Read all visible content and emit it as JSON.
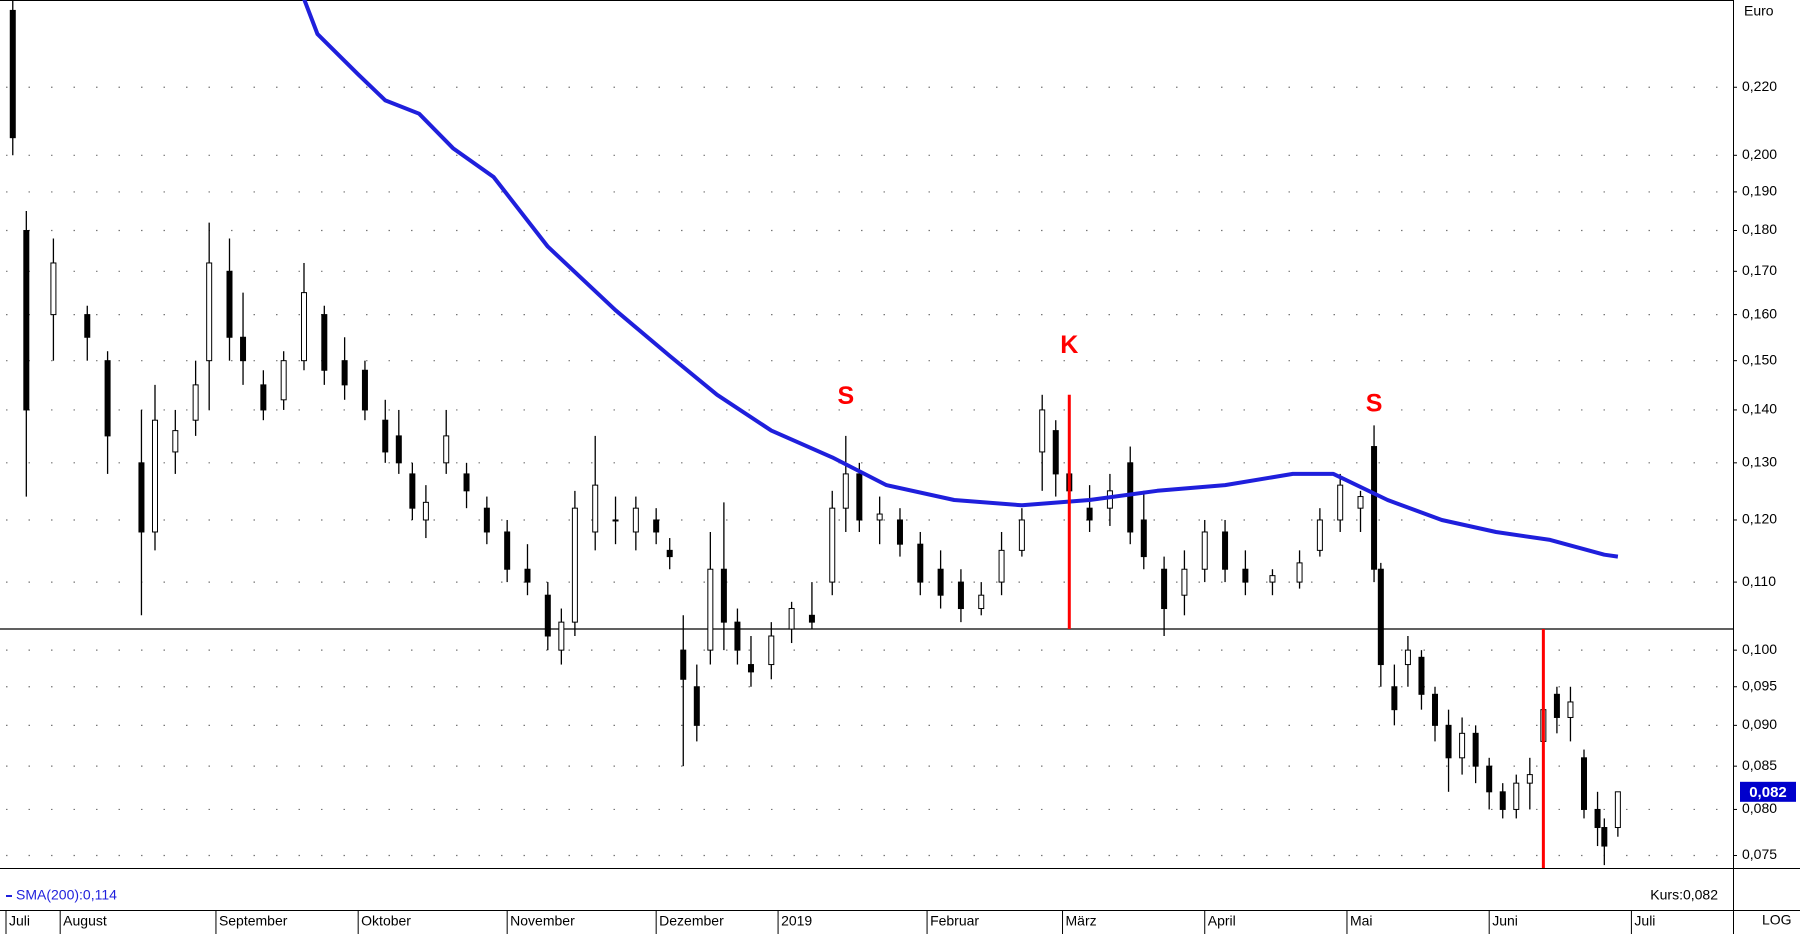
{
  "chart_data": {
    "type": "candlestick",
    "x": [
      1,
      3,
      7,
      12,
      15,
      20,
      22,
      25,
      28,
      30,
      33,
      35,
      38,
      41,
      44,
      47,
      50,
      53,
      56,
      58,
      60,
      62,
      65,
      68,
      71,
      74,
      77,
      80,
      82,
      84,
      87,
      90,
      93,
      96,
      98,
      100,
      102,
      104,
      106,
      108,
      110,
      113,
      116,
      119,
      122,
      124,
      126,
      129,
      132,
      135,
      138,
      141,
      144,
      147,
      150,
      153,
      155,
      157,
      160,
      163,
      166,
      168,
      171,
      174,
      177,
      180,
      183,
      187,
      191,
      194,
      197,
      200,
      202,
      203,
      205,
      207,
      209,
      211,
      213,
      215,
      217,
      219,
      221,
      223,
      225,
      227,
      229,
      231,
      233,
      235,
      236,
      238
    ],
    "open": [
      0.245,
      0.18,
      0.16,
      0.16,
      0.15,
      0.13,
      0.118,
      0.132,
      0.138,
      0.15,
      0.17,
      0.155,
      0.145,
      0.142,
      0.15,
      0.16,
      0.15,
      0.148,
      0.138,
      0.135,
      0.128,
      0.12,
      0.13,
      0.128,
      0.122,
      0.118,
      0.112,
      0.108,
      0.1,
      0.104,
      0.118,
      0.12,
      0.118,
      0.12,
      0.115,
      0.1,
      0.095,
      0.1,
      0.112,
      0.104,
      0.098,
      0.098,
      0.103,
      0.105,
      0.11,
      0.122,
      0.128,
      0.12,
      0.12,
      0.116,
      0.112,
      0.11,
      0.106,
      0.11,
      0.115,
      0.132,
      0.136,
      0.128,
      0.122,
      0.122,
      0.13,
      0.12,
      0.112,
      0.108,
      0.112,
      0.118,
      0.112,
      0.11,
      0.11,
      0.115,
      0.12,
      0.122,
      0.133,
      0.112,
      0.095,
      0.098,
      0.099,
      0.094,
      0.09,
      0.086,
      0.089,
      0.085,
      0.082,
      0.08,
      0.083,
      0.088,
      0.094,
      0.091,
      0.086,
      0.08,
      0.078,
      0.078
    ],
    "high": [
      0.25,
      0.185,
      0.178,
      0.162,
      0.152,
      0.14,
      0.145,
      0.14,
      0.15,
      0.182,
      0.178,
      0.165,
      0.148,
      0.152,
      0.172,
      0.162,
      0.155,
      0.15,
      0.142,
      0.14,
      0.13,
      0.126,
      0.14,
      0.13,
      0.124,
      0.12,
      0.116,
      0.11,
      0.106,
      0.125,
      0.135,
      0.124,
      0.124,
      0.122,
      0.117,
      0.105,
      0.098,
      0.118,
      0.123,
      0.106,
      0.102,
      0.104,
      0.107,
      0.11,
      0.125,
      0.135,
      0.13,
      0.124,
      0.122,
      0.118,
      0.115,
      0.112,
      0.11,
      0.118,
      0.122,
      0.143,
      0.138,
      0.13,
      0.126,
      0.128,
      0.133,
      0.125,
      0.114,
      0.115,
      0.12,
      0.12,
      0.115,
      0.112,
      0.115,
      0.122,
      0.128,
      0.125,
      0.137,
      0.113,
      0.098,
      0.102,
      0.1,
      0.095,
      0.092,
      0.091,
      0.09,
      0.086,
      0.083,
      0.084,
      0.086,
      0.099,
      0.095,
      0.095,
      0.087,
      0.082,
      0.079,
      0.082
    ],
    "low": [
      0.2,
      0.124,
      0.15,
      0.15,
      0.128,
      0.105,
      0.115,
      0.128,
      0.135,
      0.14,
      0.15,
      0.145,
      0.138,
      0.14,
      0.148,
      0.145,
      0.142,
      0.138,
      0.13,
      0.128,
      0.12,
      0.117,
      0.128,
      0.122,
      0.116,
      0.11,
      0.108,
      0.1,
      0.098,
      0.102,
      0.115,
      0.116,
      0.115,
      0.116,
      0.112,
      0.085,
      0.088,
      0.098,
      0.1,
      0.098,
      0.095,
      0.096,
      0.101,
      0.103,
      0.108,
      0.118,
      0.118,
      0.116,
      0.114,
      0.108,
      0.106,
      0.104,
      0.105,
      0.108,
      0.114,
      0.125,
      0.124,
      0.12,
      0.118,
      0.119,
      0.116,
      0.112,
      0.102,
      0.105,
      0.11,
      0.11,
      0.108,
      0.108,
      0.109,
      0.114,
      0.118,
      0.118,
      0.11,
      0.095,
      0.09,
      0.095,
      0.092,
      0.088,
      0.082,
      0.084,
      0.083,
      0.08,
      0.079,
      0.079,
      0.08,
      0.087,
      0.089,
      0.088,
      0.079,
      0.076,
      0.074,
      0.077
    ],
    "close": [
      0.205,
      0.14,
      0.172,
      0.155,
      0.135,
      0.118,
      0.138,
      0.136,
      0.145,
      0.172,
      0.155,
      0.15,
      0.14,
      0.15,
      0.165,
      0.148,
      0.145,
      0.14,
      0.132,
      0.13,
      0.122,
      0.123,
      0.135,
      0.125,
      0.118,
      0.112,
      0.11,
      0.102,
      0.104,
      0.122,
      0.126,
      0.12,
      0.122,
      0.118,
      0.114,
      0.096,
      0.09,
      0.112,
      0.104,
      0.1,
      0.097,
      0.102,
      0.106,
      0.104,
      0.122,
      0.128,
      0.12,
      0.121,
      0.116,
      0.11,
      0.108,
      0.106,
      0.108,
      0.115,
      0.12,
      0.14,
      0.128,
      0.125,
      0.12,
      0.125,
      0.118,
      0.114,
      0.106,
      0.112,
      0.118,
      0.112,
      0.11,
      0.111,
      0.113,
      0.12,
      0.126,
      0.124,
      0.112,
      0.098,
      0.092,
      0.1,
      0.094,
      0.09,
      0.086,
      0.089,
      0.085,
      0.082,
      0.08,
      0.083,
      0.084,
      0.092,
      0.091,
      0.093,
      0.08,
      0.078,
      0.076,
      0.082
    ],
    "up_color": "#ffffff",
    "down_color": "#000000",
    "sma": {
      "name": "SMA(200):0,114",
      "color": "#1f1fdc",
      "x": [
        44,
        46,
        52,
        56,
        61,
        66,
        72,
        80,
        90,
        98,
        105,
        113,
        122,
        130,
        140,
        150,
        160,
        170,
        180,
        190,
        196,
        204,
        212,
        220,
        228,
        236,
        238
      ],
      "values": [
        0.249,
        0.237,
        0.224,
        0.216,
        0.212,
        0.202,
        0.194,
        0.176,
        0.161,
        0.151,
        0.143,
        0.136,
        0.131,
        0.126,
        0.1234,
        0.1225,
        0.1234,
        0.125,
        0.126,
        0.128,
        0.128,
        0.1234,
        0.12,
        0.118,
        0.1167,
        0.1143,
        0.114
      ]
    },
    "xlim": [
      0,
      255
    ],
    "xticks": [
      {
        "value": 0,
        "label": "Juli"
      },
      {
        "value": 8,
        "label": "August"
      },
      {
        "value": 31,
        "label": "September"
      },
      {
        "value": 52,
        "label": "Oktober"
      },
      {
        "value": 74,
        "label": "November"
      },
      {
        "value": 96,
        "label": "Dezember"
      },
      {
        "value": 114,
        "label": "2019"
      },
      {
        "value": 136,
        "label": "Februar"
      },
      {
        "value": 156,
        "label": "März"
      },
      {
        "value": 177,
        "label": "April"
      },
      {
        "value": 198,
        "label": "Mai"
      },
      {
        "value": 219,
        "label": "Juni"
      },
      {
        "value": 240,
        "label": "Juli"
      }
    ],
    "ylim": [
      0.0737,
      0.2486
    ],
    "log_scale": true,
    "grid": true,
    "yticks": [
      {
        "value": 0.075,
        "label": "0,075"
      },
      {
        "value": 0.08,
        "label": "0,080"
      },
      {
        "value": 0.085,
        "label": "0,085"
      },
      {
        "value": 0.09,
        "label": "0,090"
      },
      {
        "value": 0.095,
        "label": "0,095"
      },
      {
        "value": 0.1,
        "label": "0,100"
      },
      {
        "value": 0.11,
        "label": "0,110"
      },
      {
        "value": 0.12,
        "label": "0,120"
      },
      {
        "value": 0.13,
        "label": "0,130"
      },
      {
        "value": 0.14,
        "label": "0,140"
      },
      {
        "value": 0.15,
        "label": "0,150"
      },
      {
        "value": 0.16,
        "label": "0,160"
      },
      {
        "value": 0.17,
        "label": "0,170"
      },
      {
        "value": 0.18,
        "label": "0,180"
      },
      {
        "value": 0.19,
        "label": "0,190"
      },
      {
        "value": 0.2,
        "label": "0,200"
      },
      {
        "value": 0.22,
        "label": "0,220"
      }
    ],
    "unit_label": "Euro",
    "scale_label": "LOG",
    "price_label": "Kurs:0,082",
    "current_price": {
      "value": 0.082,
      "label": "0,082"
    },
    "hline": 0.103,
    "vlines_color": "#ff0000",
    "vlines": [
      {
        "x": 157,
        "from": 0.143,
        "to": 0.103
      },
      {
        "x": 227,
        "from": 0.103,
        "to": 0.0737
      }
    ],
    "annotations_color": "#ff0000",
    "annotations": [
      {
        "text": "S",
        "x": 124,
        "y": 0.1425
      },
      {
        "text": "K",
        "x": 157,
        "y": 0.153
      },
      {
        "text": "S",
        "x": 202,
        "y": 0.141
      }
    ]
  }
}
